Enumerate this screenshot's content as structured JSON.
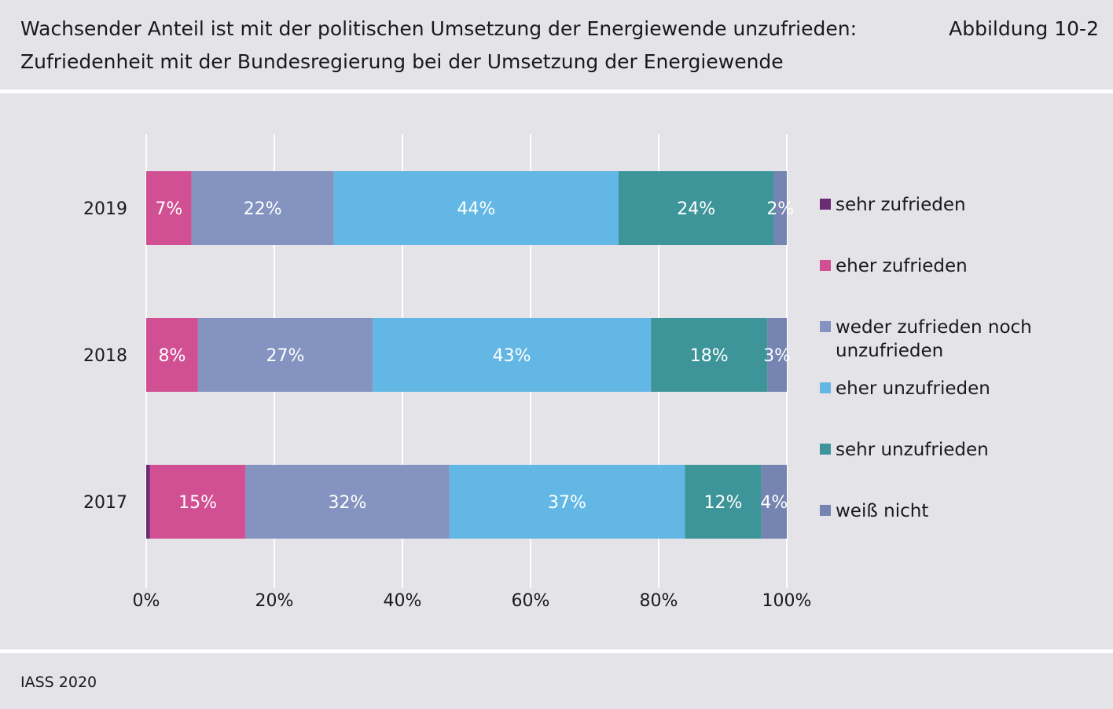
{
  "header": {
    "title_line1": "Wachsender Anteil ist mit der politischen Umsetzung der Energiewende unzufrieden:",
    "title_line2": "Zufriedenheit mit der Bundesregierung bei der Umsetzung der Energiewende",
    "figure_number": "Abbildung 10-2"
  },
  "footer": {
    "source": "IASS 2020"
  },
  "colors": {
    "background": "#e3e3e8",
    "grid": "#ffffff",
    "sehr_zufrieden": "#6a2c74",
    "eher_zufrieden": "#d14f93",
    "weder": "#8493bf",
    "eher_unzufrieden": "#63b7e4",
    "sehr_unzufrieden": "#3d9599",
    "weiss_nicht": "#7584b0"
  },
  "chart_data": {
    "type": "bar",
    "orientation": "horizontal",
    "stacked": true,
    "categories": [
      "2019",
      "2018",
      "2017"
    ],
    "xlim": [
      0,
      100
    ],
    "xticks": [
      "0%",
      "20%",
      "40%",
      "60%",
      "80%",
      "100%"
    ],
    "grid": true,
    "legend_position": "right",
    "series": [
      {
        "name": "sehr zufrieden",
        "color": "#6a2c74",
        "values": [
          0,
          0,
          0.6
        ],
        "labels": [
          "",
          "",
          ""
        ]
      },
      {
        "name": "eher zufrieden",
        "color": "#d14f93",
        "values": [
          7,
          8,
          15
        ],
        "labels": [
          "7%",
          "8%",
          "15%"
        ]
      },
      {
        "name": "weder zufrieden noch unzufrieden",
        "color": "#8493bf",
        "values": [
          22,
          27,
          32
        ],
        "labels": [
          "22%",
          "27%",
          "32%"
        ]
      },
      {
        "name": "eher unzufrieden",
        "color": "#63b7e4",
        "values": [
          44,
          43,
          37
        ],
        "labels": [
          "44%",
          "43%",
          "37%"
        ]
      },
      {
        "name": "sehr unzufrieden",
        "color": "#3d9599",
        "values": [
          24,
          18,
          12
        ],
        "labels": [
          "24%",
          "18%",
          "12%"
        ]
      },
      {
        "name": "weiß nicht",
        "color": "#7584b0",
        "values": [
          2,
          3,
          4
        ],
        "labels": [
          "2%",
          "3%",
          "4%"
        ]
      }
    ],
    "legend": [
      {
        "lines": [
          "sehr zufrieden"
        ]
      },
      {
        "lines": [
          "eher zufrieden"
        ]
      },
      {
        "lines": [
          "weder zufrieden noch",
          "unzufrieden"
        ]
      },
      {
        "lines": [
          "eher unzufrieden"
        ]
      },
      {
        "lines": [
          "sehr unzufrieden"
        ]
      },
      {
        "lines": [
          "weiß nicht"
        ]
      }
    ]
  }
}
